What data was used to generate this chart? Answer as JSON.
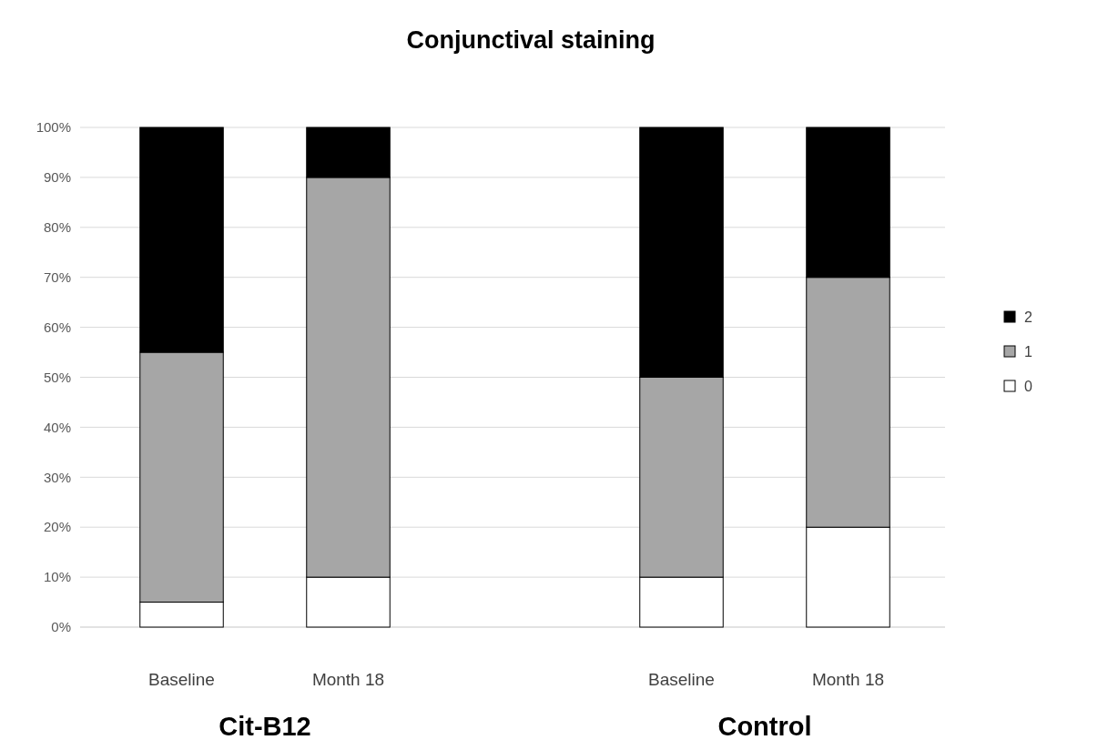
{
  "chart_data": {
    "type": "bar",
    "title": "Conjunctival staining",
    "stacked": true,
    "categories": [
      "Baseline",
      "Month 18",
      null,
      "Baseline",
      "Month 18"
    ],
    "series": [
      {
        "name": "0",
        "color": "#ffffff",
        "values": [
          5,
          10,
          null,
          10,
          20
        ]
      },
      {
        "name": "1",
        "color": "#a6a6a6",
        "values": [
          50,
          80,
          null,
          40,
          50
        ]
      },
      {
        "name": "2",
        "color": "#000000",
        "values": [
          45,
          10,
          null,
          50,
          30
        ]
      }
    ],
    "ylim": [
      0,
      100
    ],
    "yticks": [
      {
        "value": 0,
        "label": "0%"
      },
      {
        "value": 10,
        "label": "10%"
      },
      {
        "value": 20,
        "label": "20%"
      },
      {
        "value": 30,
        "label": "30%"
      },
      {
        "value": 40,
        "label": "40%"
      },
      {
        "value": 50,
        "label": "50%"
      },
      {
        "value": 60,
        "label": "60%"
      },
      {
        "value": 70,
        "label": "70%"
      },
      {
        "value": 80,
        "label": "80%"
      },
      {
        "value": 90,
        "label": "90%"
      },
      {
        "value": 100,
        "label": "100%"
      }
    ],
    "grid": "y",
    "legend": "right",
    "annotations": [
      "Cit-B12",
      "Control"
    ]
  }
}
